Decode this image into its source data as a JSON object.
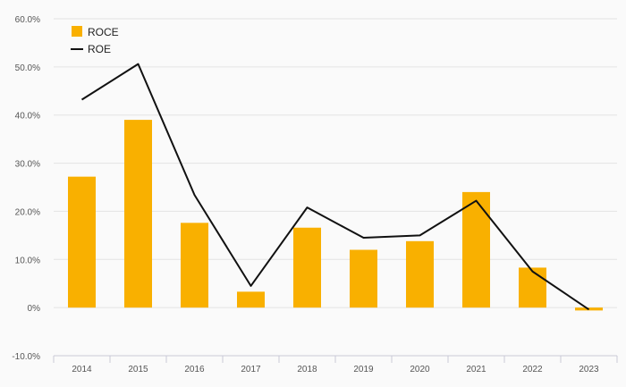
{
  "chart_data": {
    "type": "bar",
    "categories": [
      "2014",
      "2015",
      "2016",
      "2017",
      "2018",
      "2019",
      "2020",
      "2021",
      "2022",
      "2023"
    ],
    "series": [
      {
        "name": "ROCE",
        "kind": "bar",
        "color": "#f9b000",
        "values": [
          27.2,
          39.0,
          17.6,
          3.3,
          16.6,
          12.0,
          13.8,
          24.0,
          8.3,
          -0.6
        ]
      },
      {
        "name": "ROE",
        "kind": "line",
        "color": "#111111",
        "values": [
          43.2,
          50.6,
          23.4,
          4.5,
          20.8,
          14.5,
          15.0,
          22.2,
          7.5,
          -0.4
        ]
      }
    ],
    "ylim": [
      -10,
      60
    ],
    "yticks": [
      60,
      50,
      40,
      30,
      20,
      10,
      0,
      -10
    ],
    "ytick_labels": [
      "60.0%",
      "50.0%",
      "40.0%",
      "30.0%",
      "20.0%",
      "10.0%",
      "0%",
      "-10.0%"
    ],
    "grid": true,
    "legend_position": "top-left",
    "xlabel": "",
    "ylabel": ""
  }
}
